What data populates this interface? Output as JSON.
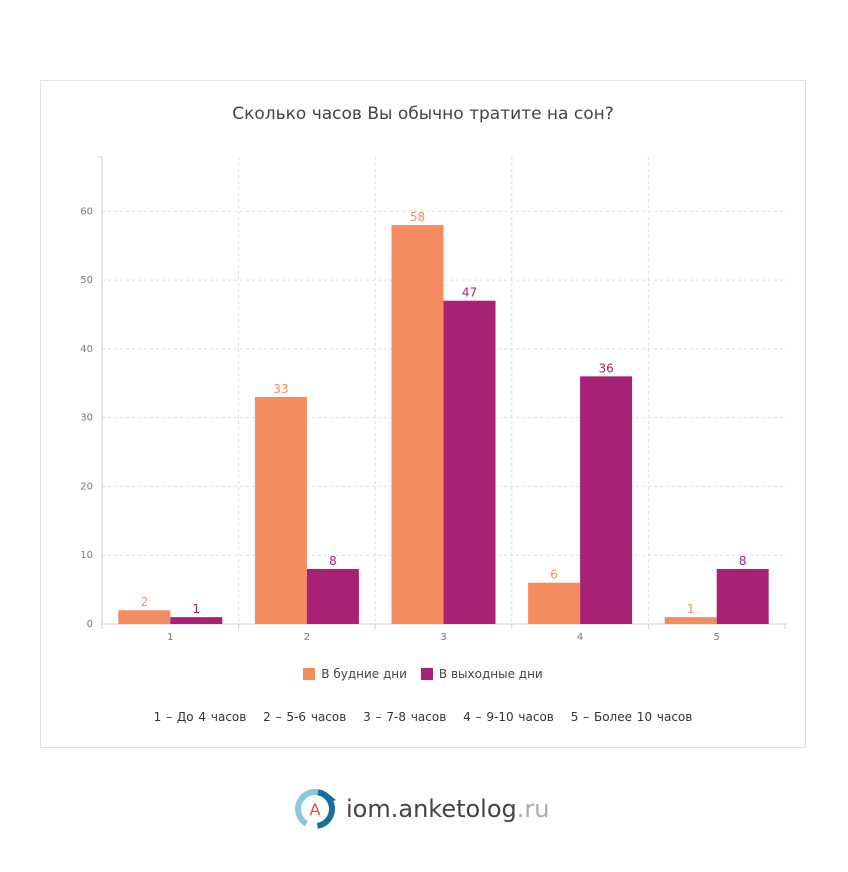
{
  "chart_data": {
    "type": "bar",
    "title": "Сколько часов Вы обычно тратите на сон?",
    "categories": [
      "1",
      "2",
      "3",
      "4",
      "5"
    ],
    "series": [
      {
        "name": "В будние дни",
        "color": "#f58c5f",
        "values": [
          2,
          33,
          58,
          6,
          1
        ]
      },
      {
        "name": "В выходные дни",
        "color": "#a72175",
        "values": [
          1,
          8,
          47,
          36,
          8
        ]
      }
    ],
    "y_ticks": [
      0,
      10,
      20,
      30,
      40,
      50,
      60
    ],
    "ylim": [
      0,
      67.6
    ],
    "grid": true,
    "legend_position": "bottom",
    "category_notes": [
      "1 – До 4 часов",
      "2 – 5-6 часов",
      "3 – 7-8 часов",
      "4 – 9-10 часов",
      "5 – Более 10 часов"
    ]
  },
  "brand": {
    "name": "iom.anketolog",
    "tld": ".ru",
    "logo_letter": "A",
    "logo_icon": "anketolog-logo-icon",
    "colors": {
      "ring_dark": "#1b6d9b",
      "ring_light": "#8cc6dc",
      "letter": "#e84a4a"
    }
  }
}
